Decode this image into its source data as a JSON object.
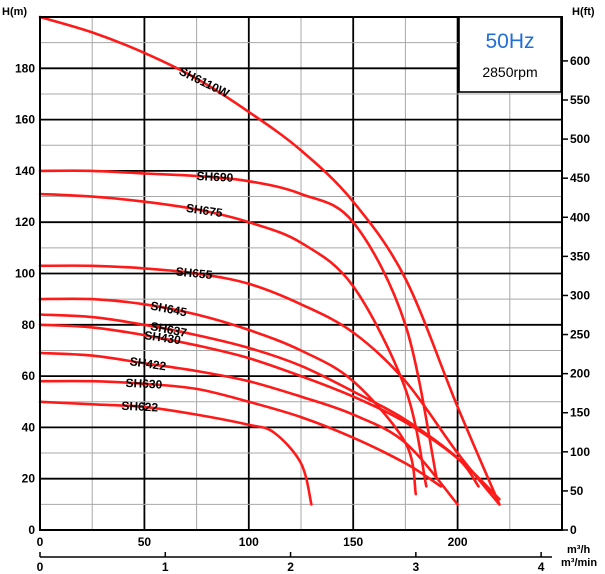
{
  "chart_data": {
    "type": "line",
    "title": "",
    "info": {
      "frequency": "50Hz",
      "speed": "2850rpm"
    },
    "ylabel_left": "H(m)",
    "ylabel_right": "H(ft)",
    "xlabel_primary": "m³/h",
    "xlabel_secondary": "m³/min",
    "xlim": [
      0,
      250
    ],
    "ylim": [
      0,
      200
    ],
    "x_ticks": [
      0,
      50,
      100,
      150,
      200
    ],
    "x_minor_step": 25,
    "x_ticks_secondary": [
      0,
      1,
      2,
      3,
      4
    ],
    "y_ticks_left": [
      0,
      20,
      40,
      60,
      80,
      100,
      120,
      140,
      160,
      180
    ],
    "y_ticks_right": [
      0,
      50,
      100,
      150,
      200,
      250,
      300,
      350,
      400,
      450,
      500,
      550,
      600
    ],
    "grid": true,
    "line_color": "#ff1a1a",
    "series": [
      {
        "name": "SH6110W",
        "x": [
          0,
          25,
          50,
          75,
          100,
          125,
          150,
          175,
          200,
          220
        ],
        "y": [
          200,
          194,
          186,
          176,
          163,
          148,
          128,
          98,
          48,
          10
        ]
      },
      {
        "name": "SH690",
        "x": [
          0,
          25,
          50,
          75,
          100,
          125,
          150,
          175,
          190
        ],
        "y": [
          140,
          140,
          139,
          138,
          136,
          131,
          120,
          80,
          20
        ]
      },
      {
        "name": "SH675",
        "x": [
          0,
          25,
          50,
          75,
          100,
          125,
          150,
          175,
          185
        ],
        "y": [
          131,
          130,
          128,
          125,
          120,
          112,
          95,
          55,
          17
        ]
      },
      {
        "name": "SH655",
        "x": [
          0,
          25,
          50,
          75,
          100,
          125,
          150,
          175,
          200,
          220
        ],
        "y": [
          103,
          103,
          102,
          100,
          96,
          88,
          77,
          58,
          30,
          10
        ]
      },
      {
        "name": "SH645",
        "x": [
          0,
          25,
          50,
          75,
          100,
          125,
          150,
          175,
          180
        ],
        "y": [
          90,
          90,
          88,
          84,
          78,
          70,
          58,
          34,
          14
        ]
      },
      {
        "name": "SH637",
        "x": [
          0,
          25,
          50,
          75,
          100,
          125,
          150,
          175,
          200,
          210
        ],
        "y": [
          84,
          83,
          80,
          76,
          71,
          64,
          54,
          43,
          28,
          17
        ]
      },
      {
        "name": "SH430",
        "x": [
          0,
          25,
          50,
          75,
          100,
          125,
          150,
          175,
          200,
          220
        ],
        "y": [
          80,
          79,
          76,
          72,
          67,
          60,
          52,
          42,
          28,
          12
        ]
      },
      {
        "name": "SH422",
        "x": [
          0,
          25,
          50,
          75,
          100,
          125,
          150,
          175,
          200
        ],
        "y": [
          69,
          68,
          65,
          62,
          58,
          52,
          45,
          34,
          10
        ]
      },
      {
        "name": "SH630",
        "x": [
          0,
          25,
          50,
          75,
          100,
          125,
          150,
          175,
          192
        ],
        "y": [
          58,
          58,
          57,
          55,
          50,
          44,
          36,
          26,
          17
        ]
      },
      {
        "name": "SH622",
        "x": [
          0,
          25,
          50,
          75,
          100,
          112,
          125,
          130
        ],
        "y": [
          50,
          49,
          48,
          45,
          41,
          38,
          26,
          10
        ]
      }
    ]
  }
}
